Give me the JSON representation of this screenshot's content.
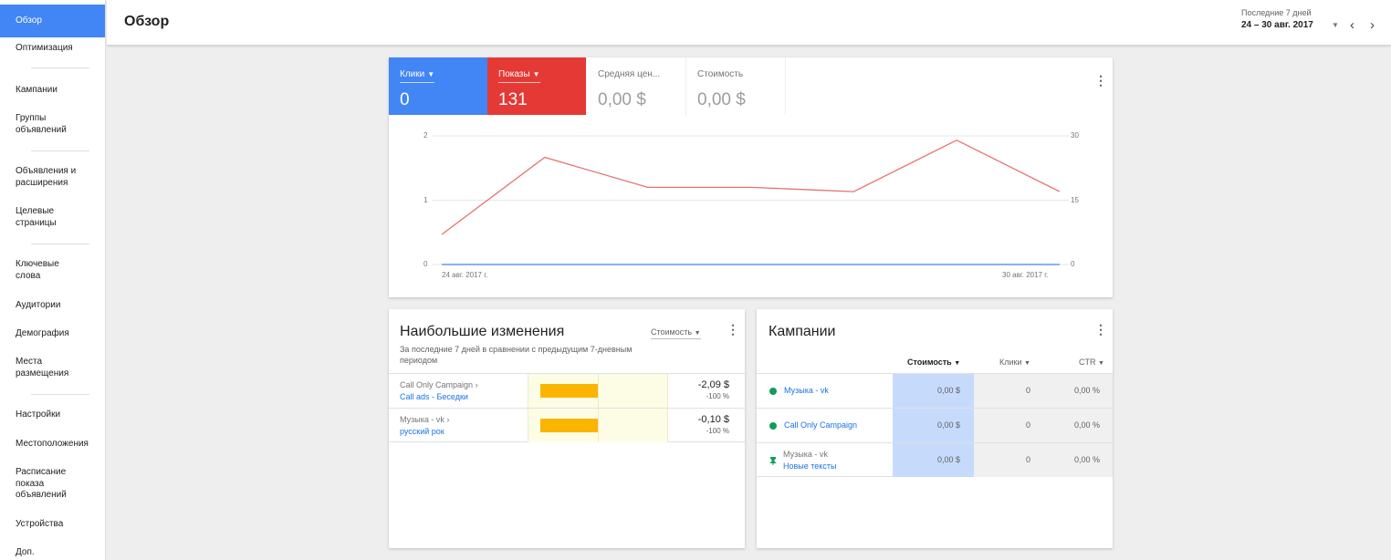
{
  "sidebar": {
    "items": [
      {
        "label": "Обзор",
        "active": true
      },
      {
        "label": "Оптимизация"
      },
      {
        "label": "Кампании"
      },
      {
        "label": "Группы объявлений"
      },
      {
        "label": "Объявления и расширения"
      },
      {
        "label": "Целевые страницы"
      },
      {
        "label": "Ключевые слова"
      },
      {
        "label": "Аудитории"
      },
      {
        "label": "Демография"
      },
      {
        "label": "Места размещения"
      },
      {
        "label": "Настройки"
      },
      {
        "label": "Местоположения"
      },
      {
        "label": "Расписание показа объявлений"
      },
      {
        "label": "Устройства"
      },
      {
        "label": "Доп."
      }
    ]
  },
  "header": {
    "title": "Обзор",
    "range_caption": "Последние 7 дней",
    "range_value": "24 – 30 авг. 2017",
    "dropdown_icon": "caret-down-icon",
    "prev_icon": "chevron-left-icon",
    "next_icon": "chevron-right-icon"
  },
  "metrics": [
    {
      "label": "Клики",
      "value": "0",
      "color": "#4285f4",
      "selected": true
    },
    {
      "label": "Показы",
      "value": "131",
      "color": "#e53935",
      "selected": true
    },
    {
      "label": "Средняя цен...",
      "value": "0,00 $",
      "selected": false
    },
    {
      "label": "Стоимость",
      "value": "0,00 $",
      "selected": false
    }
  ],
  "chart_data": {
    "type": "line",
    "x": [
      "24 авг. 2017 г.",
      "25 авг. 2017 г.",
      "26 авг. 2017 г.",
      "27 авг. 2017 г.",
      "28 авг. 2017 г.",
      "29 авг. 2017 г.",
      "30 авг. 2017 г."
    ],
    "x_tick_labels": [
      "24 авг. 2017 г.",
      "30 авг. 2017 г."
    ],
    "series": [
      {
        "name": "Клики",
        "axis": "left",
        "color": "#4285f4",
        "values": [
          0,
          0,
          0,
          0,
          0,
          0,
          0
        ]
      },
      {
        "name": "Показы",
        "axis": "right",
        "color": "#e57373",
        "values": [
          7,
          25,
          18,
          18,
          17,
          29,
          17
        ]
      }
    ],
    "y_left": {
      "ticks": [
        "2",
        "1",
        "0"
      ],
      "lim": [
        0,
        2
      ]
    },
    "y_right": {
      "ticks": [
        "30",
        "15",
        "0"
      ],
      "lim": [
        0,
        30
      ]
    },
    "grid": true,
    "legend": "none"
  },
  "changes": {
    "title": "Наибольшие изменения",
    "subtitle": "За последние 7 дней в сравнении с предыдущим 7-дневным периодом",
    "sort_label": "Стоимость",
    "rows": [
      {
        "top": "Call Only Campaign",
        "link": "Call ads - Беседки",
        "value": "-2,09 $",
        "pct": "-100 %",
        "change_fraction": -1.0
      },
      {
        "top": "Музыка - vk",
        "link": "русский рок",
        "value": "-0,10 $",
        "pct": "-100 %",
        "change_fraction": -1.0
      }
    ]
  },
  "campaigns": {
    "title": "Кампании",
    "columns": {
      "cost": "Стоимость",
      "clicks": "Клики",
      "ctr": "CTR"
    },
    "rows": [
      {
        "name": "Музыка - vk",
        "cost": "0,00 $",
        "clicks": "0",
        "ctr": "0,00 %",
        "status": "enabled",
        "status_color": "#0f9d58"
      },
      {
        "name": "Call Only Campaign",
        "cost": "0,00 $",
        "clicks": "0",
        "ctr": "0,00 %",
        "status": "enabled",
        "status_color": "#0f9d58"
      },
      {
        "top": "Музыка - vk",
        "sub": "Новые тексты",
        "cost": "0,00 $",
        "clicks": "0",
        "ctr": "0,00 %",
        "status": "pin",
        "status_color": "#0f9d58"
      }
    ]
  }
}
